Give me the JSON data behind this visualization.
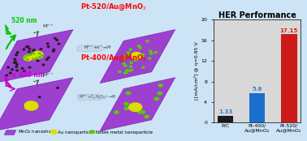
{
  "title": "HER Performance",
  "categories": [
    "P/C",
    "Pt-400/\nAu@MnO₂",
    "Pt-520/\nAu@MnO₂"
  ],
  "values": [
    1.33,
    5.8,
    17.15
  ],
  "bar_colors": [
    "#1a1a1a",
    "#1a6fcc",
    "#cc1a1a"
  ],
  "bar_labels": [
    "1.33",
    "5.8",
    "17.15"
  ],
  "bar_label_colors": [
    "#3a7bd5",
    "#3a7bd5",
    "#cc1a1a"
  ],
  "ylabel": "J [mA/cm²] @ η=0.85 V",
  "ylim": [
    0,
    20
  ],
  "yticks": [
    0,
    4,
    8,
    12,
    16,
    20
  ],
  "background_color": "#cce4f5",
  "plot_bg_color": "#d8d8d8",
  "title_fontsize": 7,
  "tick_fontsize": 4.5,
  "ylabel_fontsize": 4.5,
  "value_fontsize": 5,
  "nanosheet_color": "#9932CC",
  "nanosheet_edge": "#7722AA",
  "au_color": "#DDDD00",
  "pt_color": "#55cc00",
  "dark_dot_color": "#222222",
  "arrow_color": "#b0c4de",
  "top_label_color": "#cc0000",
  "legend_items": [
    "MnO₂ nanosheet",
    "Au nanoparticle",
    "Noble metal nanoparticle"
  ],
  "legend_colors": [
    "#9932CC",
    "#DDDD00",
    "#55cc00"
  ]
}
